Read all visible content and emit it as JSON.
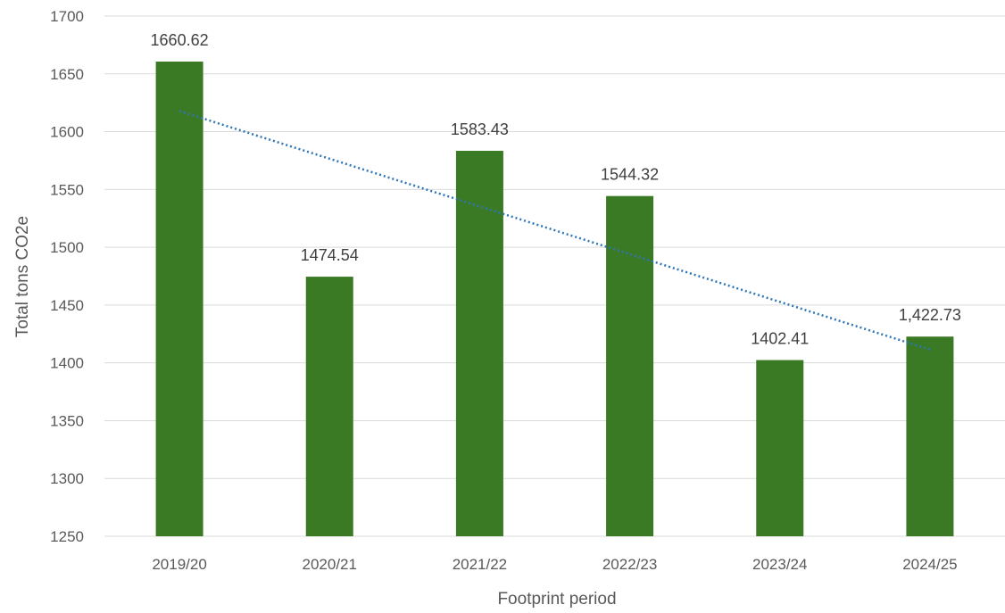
{
  "chart_data": {
    "type": "bar",
    "title": "",
    "xlabel": "Footprint period",
    "ylabel": "Total tons CO2e",
    "categories": [
      "2019/20",
      "2020/21",
      "2021/22",
      "2022/23",
      "2023/24",
      "2024/25"
    ],
    "values": [
      1660.62,
      1474.54,
      1583.43,
      1544.32,
      1402.41,
      1422.73
    ],
    "data_labels": [
      "1660.62",
      "1474.54",
      "1583.43",
      "1544.32",
      "1402.41",
      "1,422.73"
    ],
    "ylim": [
      1250,
      1700
    ],
    "yticks": [
      "1250",
      "1300",
      "1350",
      "1400",
      "1450",
      "1500",
      "1550",
      "1600",
      "1650",
      "1700"
    ],
    "grid": true,
    "legend": "none",
    "trendline": {
      "type": "linear",
      "style": "dotted"
    },
    "colors": {
      "bar": "#3b7a24",
      "trendline": "#2e75b6",
      "grid": "#d9d9d9"
    }
  }
}
